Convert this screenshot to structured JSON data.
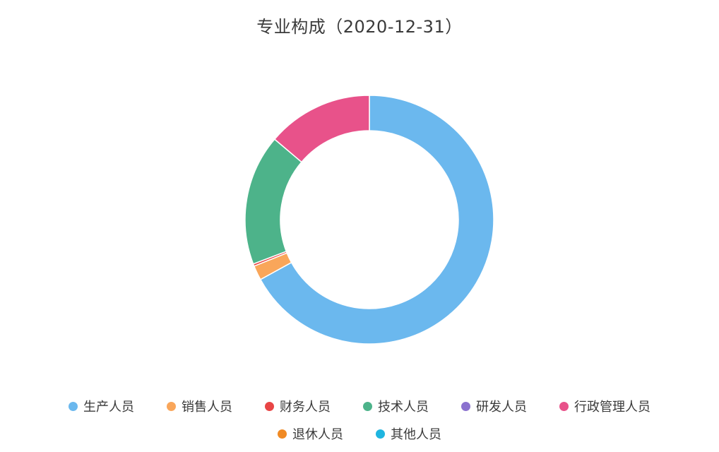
{
  "chart_data": {
    "type": "pie",
    "subtype": "donut",
    "title": "专业构成（2020-12-31）",
    "categories": [
      "生产人员",
      "销售人员",
      "财务人员",
      "技术人员",
      "研发人员",
      "行政管理人员",
      "退休人员",
      "其他人员"
    ],
    "values": [
      67.0,
      1.9,
      0.3,
      17.0,
      0,
      13.8,
      0,
      0
    ],
    "colors": [
      "#6bb8ee",
      "#f9a65a",
      "#e84545",
      "#4db38a",
      "#8b72cf",
      "#e8528a",
      "#f08a24",
      "#1fb5e0"
    ],
    "legend_position": "bottom"
  }
}
